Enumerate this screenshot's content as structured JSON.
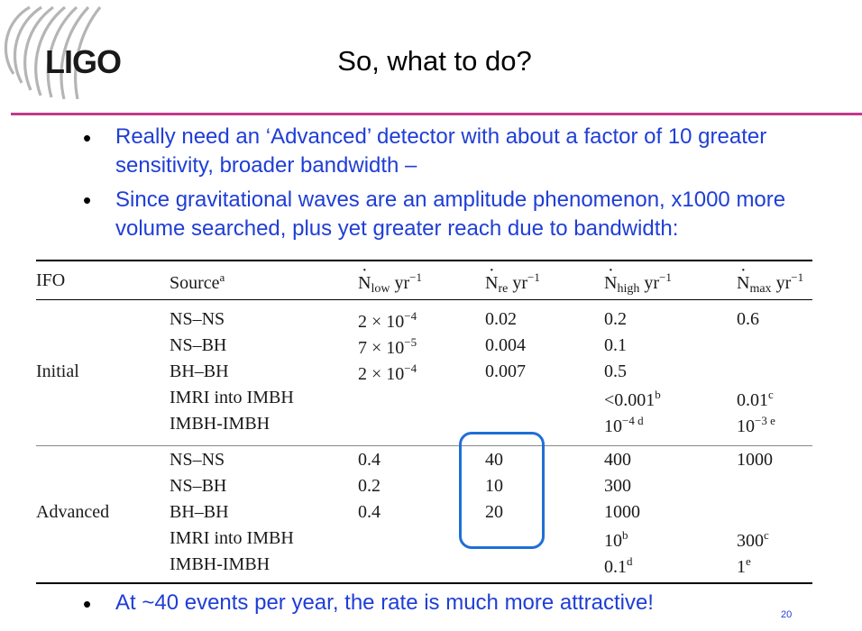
{
  "logo": {
    "text": "LIGO"
  },
  "title": "So, what to do?",
  "bullets": [
    "Really need an ‘Advanced’ detector with about a factor of 10 greater sensitivity, broader bandwidth –",
    "Since gravitational waves are an amplitude phenomenon, x1000 more volume searched, plus yet greater reach due to bandwidth:",
    "At ~40 events per year, the rate is much more attractive!"
  ],
  "bullet_symbol": "•",
  "table": {
    "headers": {
      "ifo": "IFO",
      "source": "Source",
      "source_sup": "a",
      "n_low": "N",
      "n_low_sub": "low",
      "n_re": "N",
      "n_re_sub": "re",
      "n_high": "N",
      "n_high_sub": "high",
      "n_max": "N",
      "n_max_sub": "max",
      "unit": "yr",
      "unit_sup": "−1"
    },
    "groups": [
      {
        "ifo": "Initial",
        "rows": [
          {
            "source": "NS–NS",
            "n_low": "2 × 10",
            "n_low_exp": "−4",
            "n_re": "0.02",
            "n_high": "0.2",
            "n_high_sup": "",
            "n_max": "0.6",
            "n_max_sup": ""
          },
          {
            "source": "NS–BH",
            "n_low": "7 × 10",
            "n_low_exp": "−5",
            "n_re": "0.004",
            "n_high": "0.1",
            "n_high_sup": "",
            "n_max": "",
            "n_max_sup": ""
          },
          {
            "source": "BH–BH",
            "n_low": "2 × 10",
            "n_low_exp": "−4",
            "n_re": "0.007",
            "n_high": "0.5",
            "n_high_sup": "",
            "n_max": "",
            "n_max_sup": ""
          },
          {
            "source": "IMRI into IMBH",
            "n_low": "",
            "n_low_exp": "",
            "n_re": "",
            "n_high": "<0.001",
            "n_high_sup": "b",
            "n_max": "0.01",
            "n_max_sup": "c"
          },
          {
            "source": "IMBH-IMBH",
            "n_low": "",
            "n_low_exp": "",
            "n_re": "",
            "n_high": "10",
            "n_high_sup": "−4 d",
            "n_max": "10",
            "n_max_sup": "−3 e"
          }
        ]
      },
      {
        "ifo": "Advanced",
        "rows": [
          {
            "source": "NS–NS",
            "n_low": "0.4",
            "n_low_exp": "",
            "n_re": "40",
            "n_high": "400",
            "n_high_sup": "",
            "n_max": "1000",
            "n_max_sup": ""
          },
          {
            "source": "NS–BH",
            "n_low": "0.2",
            "n_low_exp": "",
            "n_re": "10",
            "n_high": "300",
            "n_high_sup": "",
            "n_max": "",
            "n_max_sup": ""
          },
          {
            "source": "BH–BH",
            "n_low": "0.4",
            "n_low_exp": "",
            "n_re": "20",
            "n_high": "1000",
            "n_high_sup": "",
            "n_max": "",
            "n_max_sup": ""
          },
          {
            "source": "IMRI into IMBH",
            "n_low": "",
            "n_low_exp": "",
            "n_re": "",
            "n_high": "10",
            "n_high_sup": "b",
            "n_max": "300",
            "n_max_sup": "c"
          },
          {
            "source": "IMBH-IMBH",
            "n_low": "",
            "n_low_exp": "",
            "n_re": "",
            "n_high": "0.1",
            "n_high_sup": "d",
            "n_max": "1",
            "n_max_sup": "e"
          }
        ]
      }
    ]
  },
  "page_number": "20",
  "colors": {
    "accent_rule": "#c2398c",
    "bullet_text": "#1f3ed6",
    "highlight_box": "#1f6fd6"
  }
}
